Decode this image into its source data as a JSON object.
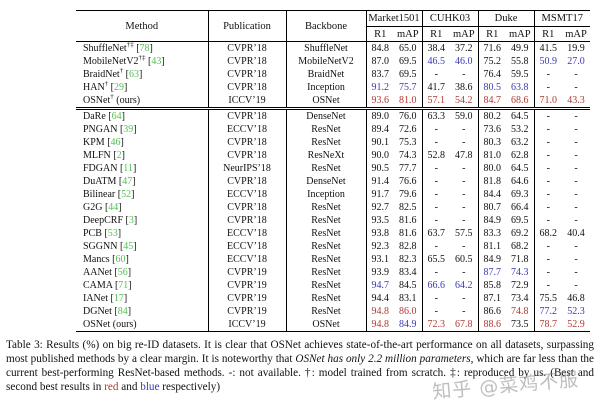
{
  "colors": {
    "best": "#b03a34",
    "second": "#3a3ab0",
    "cite": "#55c055"
  },
  "table": {
    "header": {
      "method": "Method",
      "publication": "Publication",
      "backbone": "Backbone",
      "datasets": [
        "Market1501",
        "CUHK03",
        "Duke",
        "MSMT17"
      ],
      "subcols": [
        "R1",
        "mAP"
      ]
    },
    "groups": [
      {
        "rows": [
          {
            "method": "ShuffleNet",
            "sup": "†‡",
            "cite": "78",
            "note": "",
            "publication": "CVPR’18",
            "backbone": "ShuffleNet",
            "values": [
              "84.8",
              "65.0",
              "38.4",
              "37.2",
              "71.6",
              "49.9",
              "41.5",
              "19.9"
            ],
            "colors": [
              "",
              "",
              "",
              "",
              "",
              "",
              "",
              ""
            ]
          },
          {
            "method": "MobileNetV2",
            "sup": "†‡",
            "cite": "43",
            "note": "",
            "publication": "CVPR’18",
            "backbone": "MobileNetV2",
            "values": [
              "87.0",
              "69.5",
              "46.5",
              "46.0",
              "75.2",
              "55.8",
              "50.9",
              "27.0"
            ],
            "colors": [
              "",
              "",
              "b",
              "b",
              "",
              "",
              "b",
              "b"
            ]
          },
          {
            "method": "BraidNet",
            "sup": "†",
            "cite": "63",
            "note": "",
            "publication": "CVPR’18",
            "backbone": "BraidNet",
            "values": [
              "83.7",
              "69.5",
              "-",
              "-",
              "76.4",
              "59.5",
              "-",
              "-"
            ],
            "colors": [
              "",
              "",
              "",
              "",
              "",
              "",
              "",
              ""
            ]
          },
          {
            "method": "HAN",
            "sup": "†",
            "cite": "29",
            "note": "",
            "publication": "CVPR’18",
            "backbone": "Inception",
            "values": [
              "91.2",
              "75.7",
              "41.7",
              "38.6",
              "80.5",
              "63.8",
              "-",
              "-"
            ],
            "colors": [
              "b",
              "b",
              "",
              "",
              "b",
              "b",
              "",
              ""
            ]
          },
          {
            "method": "OSNet",
            "sup": "†",
            "cite": "",
            "note": "(ours)",
            "publication": "ICCV’19",
            "backbone": "OSNet",
            "values": [
              "93.6",
              "81.0",
              "57.1",
              "54.2",
              "84.7",
              "68.6",
              "71.0",
              "43.3"
            ],
            "colors": [
              "r",
              "r",
              "r",
              "r",
              "r",
              "r",
              "r",
              "r"
            ]
          }
        ]
      },
      {
        "rows": [
          {
            "method": "DaRe",
            "sup": "",
            "cite": "64",
            "note": "",
            "publication": "CVPR’18",
            "backbone": "DenseNet",
            "values": [
              "89.0",
              "76.0",
              "63.3",
              "59.0",
              "80.2",
              "64.5",
              "-",
              "-"
            ],
            "colors": [
              "",
              "",
              "",
              "",
              "",
              "",
              "",
              ""
            ]
          },
          {
            "method": "PNGAN",
            "sup": "",
            "cite": "39",
            "note": "",
            "publication": "ECCV’18",
            "backbone": "ResNet",
            "values": [
              "89.4",
              "72.6",
              "-",
              "-",
              "73.6",
              "53.2",
              "-",
              "-"
            ],
            "colors": [
              "",
              "",
              "",
              "",
              "",
              "",
              "",
              ""
            ]
          },
          {
            "method": "KPM",
            "sup": "",
            "cite": "46",
            "note": "",
            "publication": "CVPR’18",
            "backbone": "ResNet",
            "values": [
              "90.1",
              "75.3",
              "-",
              "-",
              "80.3",
              "63.2",
              "-",
              "-"
            ],
            "colors": [
              "",
              "",
              "",
              "",
              "",
              "",
              "",
              ""
            ]
          },
          {
            "method": "MLFN",
            "sup": "",
            "cite": "2",
            "note": "",
            "publication": "CVPR’18",
            "backbone": "ResNeXt",
            "values": [
              "90.0",
              "74.3",
              "52.8",
              "47.8",
              "81.0",
              "62.8",
              "-",
              "-"
            ],
            "colors": [
              "",
              "",
              "",
              "",
              "",
              "",
              "",
              ""
            ]
          },
          {
            "method": "FDGAN",
            "sup": "",
            "cite": "11",
            "note": "",
            "publication": "NeurIPS’18",
            "backbone": "ResNet",
            "values": [
              "90.5",
              "77.7",
              "-",
              "-",
              "80.0",
              "64.5",
              "-",
              "-"
            ],
            "colors": [
              "",
              "",
              "",
              "",
              "",
              "",
              "",
              ""
            ]
          },
          {
            "method": "DuATM",
            "sup": "",
            "cite": "47",
            "note": "",
            "publication": "CVPR’18",
            "backbone": "DenseNet",
            "values": [
              "91.4",
              "76.6",
              "-",
              "-",
              "81.8",
              "64.6",
              "-",
              "-"
            ],
            "colors": [
              "",
              "",
              "",
              "",
              "",
              "",
              "",
              ""
            ]
          },
          {
            "method": "Bilinear",
            "sup": "",
            "cite": "52",
            "note": "",
            "publication": "ECCV’18",
            "backbone": "Inception",
            "values": [
              "91.7",
              "79.6",
              "-",
              "-",
              "84.4",
              "69.3",
              "-",
              "-"
            ],
            "colors": [
              "",
              "",
              "",
              "",
              "",
              "",
              "",
              ""
            ]
          },
          {
            "method": "G2G",
            "sup": "",
            "cite": "44",
            "note": "",
            "publication": "CVPR’18",
            "backbone": "ResNet",
            "values": [
              "92.7",
              "82.5",
              "-",
              "-",
              "80.7",
              "66.4",
              "-",
              "-"
            ],
            "colors": [
              "",
              "",
              "",
              "",
              "",
              "",
              "",
              ""
            ]
          },
          {
            "method": "DeepCRF",
            "sup": "",
            "cite": "3",
            "note": "",
            "publication": "CVPR’18",
            "backbone": "ResNet",
            "values": [
              "93.5",
              "81.6",
              "-",
              "-",
              "84.9",
              "69.5",
              "-",
              "-"
            ],
            "colors": [
              "",
              "",
              "",
              "",
              "",
              "",
              "",
              ""
            ]
          },
          {
            "method": "PCB",
            "sup": "",
            "cite": "53",
            "note": "",
            "publication": "ECCV’18",
            "backbone": "ResNet",
            "values": [
              "93.8",
              "81.6",
              "63.7",
              "57.5",
              "83.3",
              "69.2",
              "68.2",
              "40.4"
            ],
            "colors": [
              "",
              "",
              "",
              "",
              "",
              "",
              "",
              ""
            ]
          },
          {
            "method": "SGGNN",
            "sup": "",
            "cite": "45",
            "note": "",
            "publication": "ECCV’18",
            "backbone": "ResNet",
            "values": [
              "92.3",
              "82.8",
              "-",
              "-",
              "81.1",
              "68.2",
              "-",
              "-"
            ],
            "colors": [
              "",
              "",
              "",
              "",
              "",
              "",
              "",
              ""
            ]
          },
          {
            "method": "Mancs",
            "sup": "",
            "cite": "60",
            "note": "",
            "publication": "ECCV’18",
            "backbone": "ResNet",
            "values": [
              "93.1",
              "82.3",
              "65.5",
              "60.5",
              "84.9",
              "71.8",
              "-",
              "-"
            ],
            "colors": [
              "",
              "",
              "",
              "",
              "",
              "",
              "",
              ""
            ]
          },
          {
            "method": "AANet",
            "sup": "",
            "cite": "56",
            "note": "",
            "publication": "CVPR’19",
            "backbone": "ResNet",
            "values": [
              "93.9",
              "83.4",
              "-",
              "-",
              "87.7",
              "74.3",
              "-",
              "-"
            ],
            "colors": [
              "",
              "",
              "",
              "",
              "b",
              "b",
              "",
              ""
            ]
          },
          {
            "method": "CAMA",
            "sup": "",
            "cite": "71",
            "note": "",
            "publication": "CVPR’19",
            "backbone": "ResNet",
            "values": [
              "94.7",
              "84.5",
              "66.6",
              "64.2",
              "85.8",
              "72.9",
              "-",
              "-"
            ],
            "colors": [
              "b",
              "",
              "b",
              "b",
              "",
              "",
              "",
              ""
            ]
          },
          {
            "method": "IANet",
            "sup": "",
            "cite": "17",
            "note": "",
            "publication": "CVPR’19",
            "backbone": "ResNet",
            "values": [
              "94.4",
              "83.1",
              "-",
              "-",
              "87.1",
              "73.4",
              "75.5",
              "46.8"
            ],
            "colors": [
              "",
              "",
              "",
              "",
              "",
              "",
              "",
              ""
            ]
          },
          {
            "method": "DGNet",
            "sup": "",
            "cite": "84",
            "note": "",
            "publication": "CVPR’19",
            "backbone": "ResNet",
            "values": [
              "94.8",
              "86.0",
              "-",
              "-",
              "86.6",
              "74.8",
              "77.2",
              "52.3"
            ],
            "colors": [
              "r",
              "r",
              "",
              "",
              "",
              "r",
              "b",
              "b"
            ]
          },
          {
            "method": "OSNet",
            "sup": "",
            "cite": "",
            "note": "(ours)",
            "publication": "ICCV’19",
            "backbone": "OSNet",
            "values": [
              "94.8",
              "84.9",
              "72.3",
              "67.8",
              "88.6",
              "73.5",
              "78.7",
              "52.9"
            ],
            "colors": [
              "r",
              "b",
              "r",
              "r",
              "r",
              "",
              "r",
              "r"
            ]
          }
        ]
      }
    ]
  },
  "caption": {
    "seg1": "Table 3: Results (%) on big re-ID datasets. It is clear that OSNet achieves state-of-the-art performance on all datasets, surpassing most published methods by a clear margin. It is noteworthy that ",
    "italic": "OSNet has only 2.2 million parameters",
    "seg2": ", which are far less than the current best-performing ResNet-based methods. -: not available. †: model trained from scratch. ‡: reproduced by us. (Best and second best results in ",
    "red_word": "red",
    "seg3": " and ",
    "blue_word": "blue",
    "seg4": " respectively)"
  },
  "watermark": {
    "text": "知乎 @菜鸡不服"
  }
}
